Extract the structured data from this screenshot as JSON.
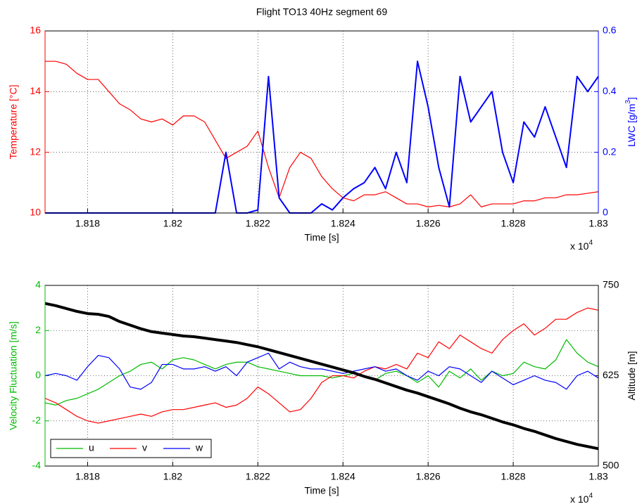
{
  "chart_data": [
    {
      "type": "line",
      "title": "Flight TO13 40Hz segment 69",
      "x": [
        1.817,
        1.81725,
        1.8175,
        1.81775,
        1.818,
        1.81825,
        1.8185,
        1.81875,
        1.819,
        1.81925,
        1.8195,
        1.81975,
        1.82,
        1.82025,
        1.8205,
        1.82075,
        1.821,
        1.82125,
        1.8215,
        1.82175,
        1.822,
        1.82225,
        1.8225,
        1.82275,
        1.823,
        1.82325,
        1.8235,
        1.82375,
        1.824,
        1.82425,
        1.8245,
        1.82475,
        1.825,
        1.82525,
        1.8255,
        1.82575,
        1.826,
        1.82625,
        1.8265,
        1.82675,
        1.827,
        1.82725,
        1.8275,
        1.82775,
        1.828,
        1.82825,
        1.8285,
        1.82875,
        1.829,
        1.82925,
        1.8295,
        1.82975,
        1.83
      ],
      "series": [
        {
          "color": "#ff0000",
          "values": [
            15.0,
            15.0,
            14.9,
            14.6,
            14.4,
            14.4,
            14.0,
            13.6,
            13.4,
            13.1,
            13.0,
            13.1,
            12.9,
            13.2,
            13.2,
            13.0,
            12.4,
            11.8,
            12.0,
            12.2,
            12.7,
            11.5,
            10.5,
            11.5,
            12.0,
            11.8,
            11.2,
            10.8,
            10.5,
            10.4,
            10.6,
            10.6,
            10.7,
            10.5,
            10.3,
            10.3,
            10.2,
            10.25,
            10.2,
            10.3,
            10.6,
            10.2,
            10.3,
            10.3,
            10.3,
            10.4,
            10.4,
            10.5,
            10.5,
            10.6,
            10.6,
            10.65,
            10.7
          ]
        },
        {
          "color": "#0000ff",
          "axis": "y2",
          "width": 2,
          "values": [
            0,
            0,
            0,
            0,
            0,
            0,
            0,
            0,
            0,
            0,
            0,
            0,
            0,
            0,
            0,
            0,
            0,
            0.2,
            0,
            0,
            0.01,
            0.45,
            0.05,
            0,
            0,
            0,
            0.03,
            0.01,
            0.05,
            0.08,
            0.1,
            0.15,
            0.08,
            0.2,
            0.1,
            0.5,
            0.35,
            0.15,
            0.02,
            0.45,
            0.3,
            0.35,
            0.4,
            0.2,
            0.1,
            0.3,
            0.25,
            0.35,
            0.25,
            0.15,
            0.45,
            0.4,
            0.45
          ]
        }
      ],
      "xlim": [
        1.817,
        1.83
      ],
      "xticks": [
        1.818,
        1.82,
        1.822,
        1.824,
        1.826,
        1.828,
        1.83
      ],
      "ylim": [
        10,
        16
      ],
      "yticks": [
        10,
        12,
        14,
        16
      ],
      "y2lim": [
        0,
        0.6
      ],
      "y2ticks": [
        0,
        0.2,
        0.4,
        0.6
      ],
      "xlabel": "Time [s]",
      "x_exponent_label": "x 10",
      "x_exponent": "4",
      "ylabel": "Temperature [°C]",
      "ycolor": "#ff0000",
      "y2label": "LWC [g/m",
      "y2label_sup": "3",
      "y2label_end": "]",
      "y2color": "#0000ff",
      "grid": true
    },
    {
      "type": "line",
      "x": [
        1.817,
        1.81725,
        1.8175,
        1.81775,
        1.818,
        1.81825,
        1.8185,
        1.81875,
        1.819,
        1.81925,
        1.8195,
        1.81975,
        1.82,
        1.82025,
        1.8205,
        1.82075,
        1.821,
        1.82125,
        1.8215,
        1.82175,
        1.822,
        1.82225,
        1.8225,
        1.82275,
        1.823,
        1.82325,
        1.8235,
        1.82375,
        1.824,
        1.82425,
        1.8245,
        1.82475,
        1.825,
        1.82525,
        1.8255,
        1.82575,
        1.826,
        1.82625,
        1.8265,
        1.82675,
        1.827,
        1.82725,
        1.8275,
        1.82775,
        1.828,
        1.82825,
        1.8285,
        1.82875,
        1.829,
        1.82925,
        1.8295,
        1.82975,
        1.83
      ],
      "series": [
        {
          "name": "u",
          "color": "#00bb00",
          "values": [
            -1.2,
            -1.3,
            -1.1,
            -1.0,
            -0.8,
            -0.6,
            -0.3,
            0.0,
            0.2,
            0.5,
            0.6,
            0.3,
            0.7,
            0.8,
            0.7,
            0.5,
            0.3,
            0.5,
            0.6,
            0.6,
            0.4,
            0.3,
            0.2,
            0.1,
            0.0,
            0.0,
            0.0,
            -0.1,
            0.0,
            0.1,
            0.0,
            -0.2,
            0.1,
            0.2,
            0.0,
            -0.3,
            0.0,
            -0.5,
            0.2,
            -0.1,
            0.3,
            -0.2,
            0.2,
            0.0,
            0.1,
            0.6,
            0.4,
            0.3,
            0.7,
            1.6,
            1.0,
            0.6,
            0.4
          ]
        },
        {
          "name": "v",
          "color": "#ff0000",
          "values": [
            -1.0,
            -1.2,
            -1.5,
            -1.8,
            -2.0,
            -2.1,
            -2.0,
            -1.9,
            -1.8,
            -1.7,
            -1.8,
            -1.6,
            -1.5,
            -1.5,
            -1.4,
            -1.3,
            -1.2,
            -1.4,
            -1.3,
            -1.0,
            -0.5,
            -0.8,
            -1.2,
            -1.6,
            -1.5,
            -1.0,
            -0.3,
            0.0,
            0.0,
            -0.1,
            0.2,
            0.4,
            0.3,
            0.5,
            0.3,
            1.0,
            0.8,
            1.5,
            1.2,
            1.8,
            1.5,
            1.2,
            1.0,
            1.6,
            2.0,
            2.3,
            1.8,
            2.1,
            2.5,
            2.5,
            2.8,
            3.0,
            2.9
          ]
        },
        {
          "name": "w",
          "color": "#0000ff",
          "values": [
            0.0,
            0.1,
            0.0,
            -0.2,
            0.4,
            0.9,
            0.8,
            0.3,
            -0.5,
            -0.6,
            -0.3,
            0.5,
            0.5,
            0.3,
            0.3,
            0.4,
            0.2,
            0.4,
            0.0,
            0.6,
            0.8,
            1.0,
            0.3,
            0.6,
            0.4,
            0.3,
            0.3,
            0.2,
            0.1,
            0.2,
            0.3,
            0.4,
            0.2,
            0.3,
            0.0,
            -0.2,
            0.2,
            0.0,
            0.4,
            0.3,
            0.0,
            -0.3,
            0.2,
            -0.1,
            -0.4,
            -0.2,
            0.0,
            -0.2,
            -0.3,
            -0.6,
            0.0,
            0.2,
            -0.1
          ]
        },
        {
          "color": "#000000",
          "axis": "y2",
          "width": 4,
          "values": [
            725,
            722,
            718,
            714,
            711,
            710,
            707,
            700,
            695,
            690,
            686,
            684,
            682,
            680,
            679,
            677,
            675,
            673,
            671,
            668,
            665,
            661,
            657,
            653,
            649,
            645,
            641,
            637,
            633,
            629,
            624,
            620,
            615,
            610,
            605,
            601,
            596,
            591,
            586,
            580,
            575,
            571,
            566,
            561,
            557,
            552,
            548,
            543,
            538,
            534,
            530,
            527,
            524
          ]
        }
      ],
      "xlim": [
        1.817,
        1.83
      ],
      "xticks": [
        1.818,
        1.82,
        1.822,
        1.824,
        1.826,
        1.828,
        1.83
      ],
      "ylim": [
        -4,
        4
      ],
      "yticks": [
        -4,
        -2,
        0,
        2,
        4
      ],
      "y2lim": [
        500,
        750
      ],
      "y2ticks": [
        500,
        625,
        750
      ],
      "xlabel": "Time [s]",
      "x_exponent_label": "x 10",
      "x_exponent": "4",
      "ylabel": "Velocity Fluctuation [m/s]",
      "ycolor": "#00bb00",
      "y2label": "Altitude [m]",
      "y2color": "#000000",
      "grid": true,
      "legend": "lower left"
    }
  ]
}
